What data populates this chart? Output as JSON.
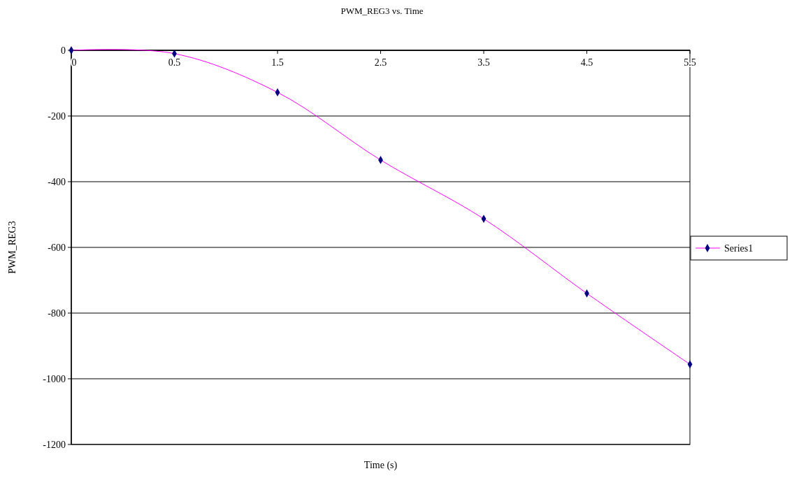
{
  "chart_data": {
    "type": "line",
    "title": "PWM_REG3 vs. Time",
    "xlabel": "Time (s)",
    "ylabel": "PWM_REG3",
    "categories": [
      "0",
      "0.5",
      "1.5",
      "2.5",
      "3.5",
      "4.5",
      "5.5"
    ],
    "series": [
      {
        "name": "Series1",
        "color": "#ff00ff",
        "colors": [
          "#000080",
          "#000080",
          "#000080",
          "#000080",
          "#000080",
          "#000080",
          "#000080"
        ],
        "values": [
          0,
          -10,
          -128,
          -334,
          -513,
          -740,
          -956
        ]
      }
    ],
    "ylim": [
      -1200,
      0
    ],
    "yticks": [
      -1200,
      -1000,
      -800,
      -600,
      -400,
      -200,
      0
    ],
    "grid": "y",
    "legend": "right",
    "marker": "diamond",
    "line_style": "solid"
  }
}
